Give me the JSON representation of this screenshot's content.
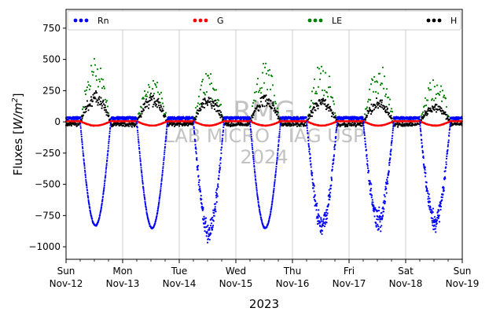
{
  "chart_data": {
    "type": "scatter",
    "ylabel": "Fluxes [W/m²]",
    "ylabel_base": "Fluxes [",
    "ylabel_unit_main": "W/m",
    "ylabel_unit_sup": "2",
    "ylabel_close": "]",
    "xlabel": "2023",
    "ylim": [
      -1100,
      900
    ],
    "yticks": [
      {
        "value": 750,
        "label": "750"
      },
      {
        "value": 500,
        "label": "500"
      },
      {
        "value": 250,
        "label": "250"
      },
      {
        "value": 0,
        "label": "0"
      },
      {
        "value": -250,
        "label": "−250"
      },
      {
        "value": -500,
        "label": "−500"
      },
      {
        "value": -750,
        "label": "−750"
      },
      {
        "value": -1000,
        "label": "−1000"
      }
    ],
    "xlim_days": [
      0,
      7
    ],
    "xticks": [
      {
        "day": 0,
        "line1": "Sun",
        "line2": "Nov-12"
      },
      {
        "day": 1,
        "line1": "Mon",
        "line2": "Nov-13"
      },
      {
        "day": 2,
        "line1": "Tue",
        "line2": "Nov-14"
      },
      {
        "day": 3,
        "line1": "Wed",
        "line2": "Nov-15"
      },
      {
        "day": 4,
        "line1": "Thu",
        "line2": "Nov-16"
      },
      {
        "day": 5,
        "line1": "Fri",
        "line2": "Nov-17"
      },
      {
        "day": 6,
        "line1": "Sat",
        "line2": "Nov-18"
      },
      {
        "day": 7,
        "line1": "Sun",
        "line2": "Nov-19"
      }
    ],
    "grid": "vertical",
    "legend_position": "top",
    "series": [
      {
        "name": "Rn",
        "color": "#0000ff",
        "night": 30,
        "peak": [
          -830,
          -850,
          -880,
          -850,
          -820,
          -780,
          -800
        ]
      },
      {
        "name": "G",
        "color": "#ff0000",
        "day": -30,
        "night": 5
      },
      {
        "name": "LE",
        "color": "#008000",
        "peak": [
          450,
          300,
          350,
          400,
          400,
          390,
          300
        ]
      },
      {
        "name": "H",
        "color": "#000000",
        "peak": [
          200,
          180,
          170,
          180,
          160,
          150,
          120
        ]
      }
    ],
    "watermark": {
      "line1": "RMG",
      "line2": "LAB MICRO - IAG USP",
      "line3": "2024"
    }
  }
}
